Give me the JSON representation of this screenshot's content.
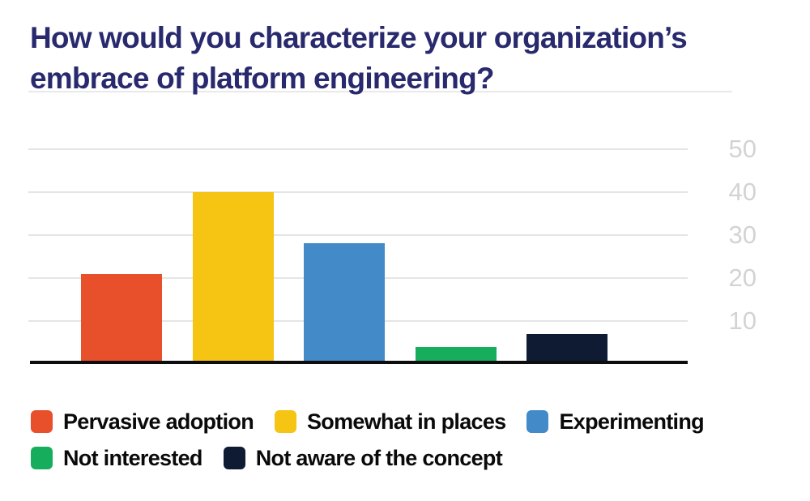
{
  "title": {
    "lines": [
      "How would you characterize your organization’s",
      "embrace of platform engineering?"
    ]
  },
  "chart_data": {
    "type": "bar",
    "title": "How would you characterize your organization’s embrace of platform engineering?",
    "categories": [
      "Pervasive adoption",
      "Somewhat in places",
      "Experimenting",
      "Not interested",
      "Not aware of the concept"
    ],
    "values": [
      21,
      40,
      28,
      4,
      7
    ],
    "bar_colors": [
      "#e8502b",
      "#f6c413",
      "#428bc8",
      "#16ae5c",
      "#0e1b33"
    ],
    "xlabel": "",
    "ylabel": "",
    "ylim": [
      0,
      63
    ],
    "y_ticks": [
      50,
      40,
      30,
      20,
      10
    ],
    "grid": "horizontal",
    "x_tick_labels": "none",
    "legend_position": "bottom"
  },
  "legend": {
    "rows": [
      [
        {
          "label": "Pervasive adoption",
          "color": "#e8502b"
        },
        {
          "label": "Somewhat in places",
          "color": "#f6c413"
        },
        {
          "label": "Experimenting",
          "color": "#428bc8"
        }
      ],
      [
        {
          "label": "Not interested",
          "color": "#16ae5c"
        },
        {
          "label": "Not aware of the concept",
          "color": "#0e1b33"
        }
      ]
    ]
  },
  "colors": {
    "title_text": "#292a6e",
    "tick_label": "#d3d3d3",
    "gridline": "#e5e5e5",
    "axis_line": "#0d0d0d",
    "legend_text": "#0a0a0a",
    "background": "#ffffff"
  }
}
